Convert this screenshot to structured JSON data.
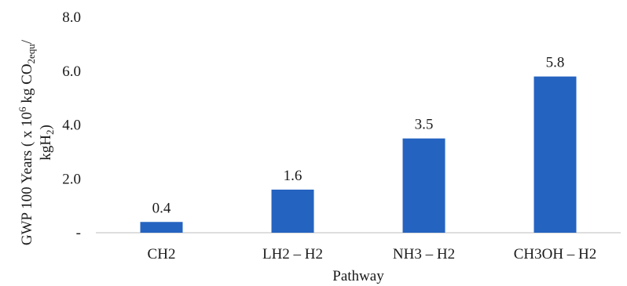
{
  "chart_data": {
    "type": "bar",
    "categories": [
      "CH2",
      "LH2 – H2",
      "NH3 – H2",
      "CH3OH – H2"
    ],
    "values": [
      0.4,
      1.6,
      3.5,
      5.8
    ],
    "data_labels": [
      "0.4",
      "1.6",
      "3.5",
      "5.8"
    ],
    "title": "",
    "xlabel": "Pathway",
    "ylabel": {
      "line1_prefix": "GWP 100 Years ( x 10",
      "line1_sup": "6",
      "line1_mid": " kg CO",
      "line1_sub": "2equ",
      "line1_suffix": "/",
      "line2_prefix": "kgH",
      "line2_sub": "2",
      "line2_suffix": ")"
    },
    "ylim": [
      0,
      8
    ],
    "yticks": [
      0,
      2,
      4,
      6,
      8
    ],
    "ytick_labels": [
      "-",
      "2.0",
      "4.0",
      "6.0",
      "8.0"
    ],
    "grid": false,
    "legend": "none",
    "colors": {
      "bar": "#2563c0",
      "axis": "#d4d4d4",
      "text": "#1a1a1a"
    }
  }
}
